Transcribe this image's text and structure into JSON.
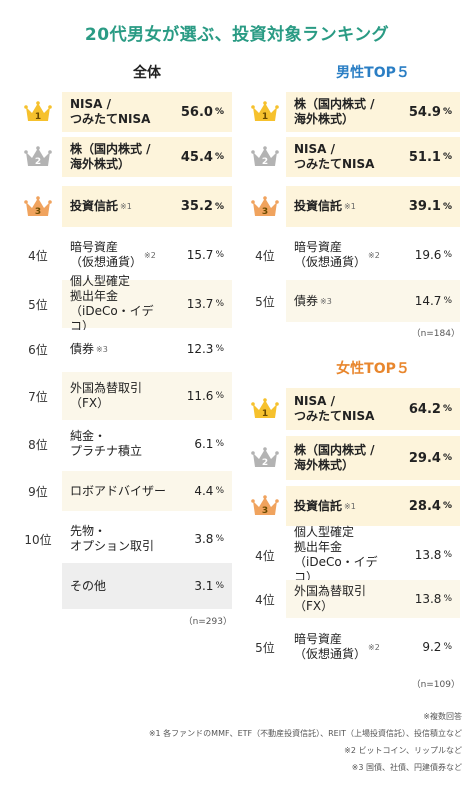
{
  "title": "20代男女が選ぶ、投資対象ランキング",
  "colors": {
    "title": "#2a9b84",
    "male_title": "#2a7ec4",
    "female_title": "#e8862d",
    "row_highlight": "#fdf4db",
    "row_alt": "#fbf7ea",
    "row_other": "#eeeeee",
    "gold": "#f6c12d",
    "silver": "#b3b3b3",
    "bronze": "#f0a35e"
  },
  "panels": [
    {
      "key": "overall",
      "title": "全体",
      "sample": "（n=293）",
      "rows": [
        {
          "rank": "1",
          "rank_label": "",
          "crown": "gold",
          "label": "NISA /\nつみたてNISA",
          "note": "",
          "value": "56.0"
        },
        {
          "rank": "2",
          "rank_label": "",
          "crown": "silver",
          "label": "株（国内株式 /\n海外株式）",
          "note": "",
          "value": "45.4"
        },
        {
          "rank": "3",
          "rank_label": "",
          "crown": "bronze",
          "label": "投資信託",
          "note": "※1",
          "value": "35.2"
        },
        {
          "rank": "4",
          "rank_label": "4位",
          "crown": "",
          "label": "暗号資産\n（仮想通貨）",
          "note": "※2",
          "value": "15.7"
        },
        {
          "rank": "5",
          "rank_label": "5位",
          "crown": "",
          "label": "個人型確定\n拠出年金\n（iDeCo・イデコ）",
          "note": "",
          "value": "13.7"
        },
        {
          "rank": "6",
          "rank_label": "6位",
          "crown": "",
          "label": "債券",
          "note": "※3",
          "value": "12.3"
        },
        {
          "rank": "7",
          "rank_label": "7位",
          "crown": "",
          "label": "外国為替取引\n（FX）",
          "note": "",
          "value": "11.6"
        },
        {
          "rank": "8",
          "rank_label": "8位",
          "crown": "",
          "label": "純金・\nプラチナ積立",
          "note": "",
          "value": "6.1"
        },
        {
          "rank": "9",
          "rank_label": "9位",
          "crown": "",
          "label": "ロボアドバイザー",
          "note": "",
          "value": "4.4"
        },
        {
          "rank": "10",
          "rank_label": "10位",
          "crown": "",
          "label": "先物・\nオプション取引",
          "note": "",
          "value": "3.8"
        },
        {
          "rank": "other",
          "rank_label": "",
          "crown": "",
          "label": "その他",
          "note": "",
          "value": "3.1"
        }
      ]
    },
    {
      "key": "male",
      "title": "男性TOP５",
      "sample": "（n=184）",
      "rows": [
        {
          "rank": "1",
          "rank_label": "",
          "crown": "gold",
          "label": "株（国内株式 /\n海外株式）",
          "note": "",
          "value": "54.9"
        },
        {
          "rank": "2",
          "rank_label": "",
          "crown": "silver",
          "label": "NISA /\nつみたてNISA",
          "note": "",
          "value": "51.1"
        },
        {
          "rank": "3",
          "rank_label": "",
          "crown": "bronze",
          "label": "投資信託",
          "note": "※1",
          "value": "39.1"
        },
        {
          "rank": "4",
          "rank_label": "4位",
          "crown": "",
          "label": "暗号資産\n（仮想通貨）",
          "note": "※2",
          "value": "19.6"
        },
        {
          "rank": "5",
          "rank_label": "5位",
          "crown": "",
          "label": "債券",
          "note": "※3",
          "value": "14.7"
        }
      ]
    },
    {
      "key": "female",
      "title": "女性TOP５",
      "sample": "（n=109）",
      "rows": [
        {
          "rank": "1",
          "rank_label": "",
          "crown": "gold",
          "label": "NISA /\nつみたてNISA",
          "note": "",
          "value": "64.2"
        },
        {
          "rank": "2",
          "rank_label": "",
          "crown": "silver",
          "label": "株（国内株式 /\n海外株式）",
          "note": "",
          "value": "29.4"
        },
        {
          "rank": "3",
          "rank_label": "",
          "crown": "bronze",
          "label": "投資信託",
          "note": "※1",
          "value": "28.4"
        },
        {
          "rank": "4",
          "rank_label": "4位",
          "crown": "",
          "label": "個人型確定\n拠出年金\n（iDeCo・イデコ）",
          "note": "",
          "value": "13.8"
        },
        {
          "rank": "4b",
          "rank_label": "4位",
          "crown": "",
          "label": "外国為替取引\n（FX）",
          "note": "",
          "value": "13.8"
        },
        {
          "rank": "5",
          "rank_label": "5位",
          "crown": "",
          "label": "暗号資産\n（仮想通貨）",
          "note": "※2",
          "value": "9.2"
        }
      ]
    }
  ],
  "pct_symbol": "%",
  "footnotes": [
    "※複数回答",
    "※1 各ファンドのMMF、ETF（不動産投資信託）、REIT（上場投資信託）、投信積立など",
    "※2 ビットコイン、リップルなど",
    "※3 国債、社債、円建債券など"
  ],
  "chart_data": [
    {
      "type": "table",
      "title": "全体",
      "categories": [
        "NISA / つみたてNISA",
        "株（国内株式 / 海外株式）",
        "投資信託",
        "暗号資産（仮想通貨）",
        "個人型確定拠出年金（iDeCo・イデコ）",
        "債券",
        "外国為替取引（FX）",
        "純金・プラチナ積立",
        "ロボアドバイザー",
        "先物・オプション取引",
        "その他"
      ],
      "values": [
        56.0,
        45.4,
        35.2,
        15.7,
        13.7,
        12.3,
        11.6,
        6.1,
        4.4,
        3.8,
        3.1
      ],
      "unit": "%",
      "n": 293
    },
    {
      "type": "table",
      "title": "男性TOP５",
      "categories": [
        "株（国内株式 / 海外株式）",
        "NISA / つみたてNISA",
        "投資信託",
        "暗号資産（仮想通貨）",
        "債券"
      ],
      "values": [
        54.9,
        51.1,
        39.1,
        19.6,
        14.7
      ],
      "unit": "%",
      "n": 184
    },
    {
      "type": "table",
      "title": "女性TOP５",
      "categories": [
        "NISA / つみたてNISA",
        "株（国内株式 / 海外株式）",
        "投資信託",
        "個人型確定拠出年金（iDeCo・イデコ）",
        "外国為替取引（FX）",
        "暗号資産（仮想通貨）"
      ],
      "values": [
        64.2,
        29.4,
        28.4,
        13.8,
        13.8,
        9.2
      ],
      "unit": "%",
      "n": 109
    }
  ]
}
